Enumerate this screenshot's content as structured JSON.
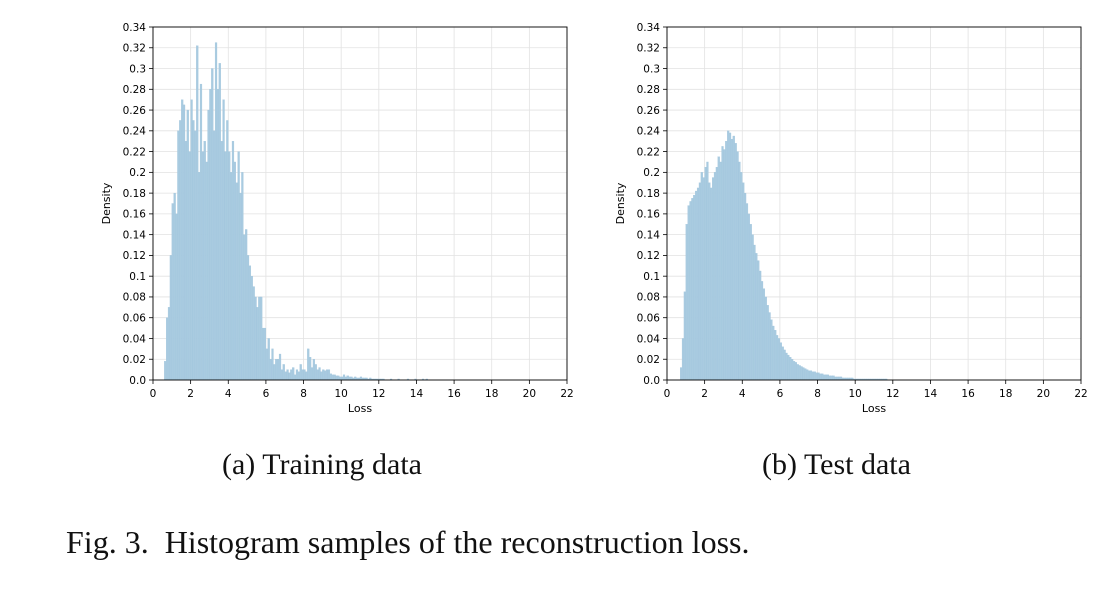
{
  "figure": {
    "number_label": "Fig. 3.",
    "caption": "Histogram samples of the reconstruction loss."
  },
  "colors": {
    "bar": "#a9cbe0",
    "grid": "#e2e2e2",
    "axis": "#000000"
  },
  "chart_data": [
    {
      "type": "bar",
      "subcaption": "(a) Training data",
      "xlabel": "Loss",
      "ylabel": "Density",
      "xlim": [
        0,
        22
      ],
      "ylim": [
        0,
        0.34
      ],
      "xticks": [
        0,
        2,
        4,
        6,
        8,
        10,
        12,
        14,
        16,
        18,
        20,
        22
      ],
      "yticks": [
        0.0,
        0.02,
        0.04,
        0.06,
        0.08,
        0.1,
        0.12,
        0.14,
        0.16,
        0.18,
        0.2,
        0.22,
        0.24,
        0.26,
        0.28,
        0.3,
        0.32,
        0.34
      ],
      "ytick_labels": [
        "0.0",
        "0.02",
        "0.04",
        "0.06",
        "0.08",
        "0.1",
        "0.12",
        "0.14",
        "0.16",
        "0.18",
        "0.2",
        "0.22",
        "0.24",
        "0.26",
        "0.28",
        "0.3",
        "0.32",
        "0.34"
      ],
      "grid": true,
      "bin_width": 0.1,
      "x_start": 0.6,
      "values": [
        0.018,
        0.06,
        0.07,
        0.12,
        0.17,
        0.18,
        0.16,
        0.24,
        0.25,
        0.27,
        0.265,
        0.23,
        0.26,
        0.22,
        0.27,
        0.25,
        0.24,
        0.322,
        0.2,
        0.285,
        0.22,
        0.23,
        0.21,
        0.26,
        0.28,
        0.3,
        0.24,
        0.325,
        0.28,
        0.305,
        0.23,
        0.27,
        0.22,
        0.25,
        0.22,
        0.2,
        0.23,
        0.21,
        0.19,
        0.22,
        0.18,
        0.2,
        0.14,
        0.145,
        0.12,
        0.11,
        0.1,
        0.09,
        0.08,
        0.07,
        0.08,
        0.08,
        0.05,
        0.05,
        0.03,
        0.04,
        0.02,
        0.03,
        0.015,
        0.02,
        0.02,
        0.025,
        0.01,
        0.015,
        0.008,
        0.01,
        0.007,
        0.01,
        0.012,
        0.005,
        0.01,
        0.008,
        0.015,
        0.01,
        0.01,
        0.008,
        0.03,
        0.022,
        0.012,
        0.02,
        0.015,
        0.01,
        0.012,
        0.008,
        0.01,
        0.009,
        0.01,
        0.01,
        0.006,
        0.005,
        0.005,
        0.004,
        0.004,
        0.003,
        0.003,
        0.005,
        0.003,
        0.004,
        0.003,
        0.003,
        0.002,
        0.003,
        0.002,
        0.002,
        0.003,
        0.002,
        0.002,
        0.002,
        0.001,
        0.002,
        0.001,
        0.001,
        0.001,
        0.001,
        0.001,
        0.001,
        0.001,
        0.0,
        0.0,
        0.0,
        0.001,
        0.0,
        0.0,
        0.0,
        0.001,
        0.0,
        0.0,
        0.0,
        0.0,
        0.001,
        0.0,
        0.0,
        0.0,
        0.001,
        0.0,
        0.0,
        0.0,
        0.001,
        0.0,
        0.001,
        0.0,
        0.0,
        0.0,
        0.0,
        0.0,
        0.0,
        0.0,
        0.0,
        0.0,
        0.0,
        0.0,
        0.0,
        0.0,
        0.0,
        0.0,
        0.0,
        0.0,
        0.0,
        0.0,
        0.0,
        0.0,
        0.0,
        0.0,
        0.0,
        0.0,
        0.0,
        0.0,
        0.0,
        0.0,
        0.0,
        0.0,
        0.0,
        0.0,
        0.0,
        0.0,
        0.0,
        0.0,
        0.0,
        0.0,
        0.0,
        0.0,
        0.0,
        0.0,
        0.0,
        0.0,
        0.0,
        0.0,
        0.0,
        0.0,
        0.0,
        0.0,
        0.0,
        0.0,
        0.0,
        0.0,
        0.0,
        0.0,
        0.0,
        0.0,
        0.0,
        0.0,
        0.0,
        0.0,
        0.0,
        0.0,
        0.0
      ]
    },
    {
      "type": "bar",
      "subcaption": "(b) Test data",
      "xlabel": "Loss",
      "ylabel": "Density",
      "xlim": [
        0,
        22
      ],
      "ylim": [
        0,
        0.34
      ],
      "xticks": [
        0,
        2,
        4,
        6,
        8,
        10,
        12,
        14,
        16,
        18,
        20,
        22
      ],
      "yticks": [
        0.0,
        0.02,
        0.04,
        0.06,
        0.08,
        0.1,
        0.12,
        0.14,
        0.16,
        0.18,
        0.2,
        0.22,
        0.24,
        0.26,
        0.28,
        0.3,
        0.32,
        0.34
      ],
      "ytick_labels": [
        "0.0",
        "0.02",
        "0.04",
        "0.06",
        "0.08",
        "0.1",
        "0.12",
        "0.14",
        "0.16",
        "0.18",
        "0.2",
        "0.22",
        "0.24",
        "0.26",
        "0.28",
        "0.3",
        "0.32",
        "0.34"
      ],
      "grid": true,
      "bin_width": 0.1,
      "x_start": 0.7,
      "values": [
        0.012,
        0.04,
        0.085,
        0.15,
        0.168,
        0.172,
        0.175,
        0.178,
        0.182,
        0.185,
        0.19,
        0.2,
        0.195,
        0.205,
        0.21,
        0.19,
        0.185,
        0.195,
        0.2,
        0.205,
        0.215,
        0.21,
        0.225,
        0.222,
        0.23,
        0.24,
        0.238,
        0.232,
        0.235,
        0.228,
        0.22,
        0.21,
        0.2,
        0.19,
        0.18,
        0.17,
        0.16,
        0.15,
        0.14,
        0.13,
        0.122,
        0.115,
        0.105,
        0.095,
        0.088,
        0.08,
        0.072,
        0.065,
        0.058,
        0.052,
        0.048,
        0.043,
        0.04,
        0.036,
        0.032,
        0.029,
        0.026,
        0.024,
        0.022,
        0.02,
        0.018,
        0.017,
        0.015,
        0.014,
        0.013,
        0.012,
        0.011,
        0.01,
        0.009,
        0.009,
        0.008,
        0.008,
        0.007,
        0.007,
        0.006,
        0.006,
        0.005,
        0.005,
        0.005,
        0.004,
        0.004,
        0.004,
        0.003,
        0.003,
        0.003,
        0.003,
        0.002,
        0.002,
        0.002,
        0.002,
        0.002,
        0.002,
        0.001,
        0.001,
        0.001,
        0.001,
        0.001,
        0.001,
        0.001,
        0.001,
        0.001,
        0.001,
        0.001,
        0.001,
        0.001,
        0.001,
        0.001,
        0.001,
        0.001,
        0.001,
        0.0,
        0.0,
        0.0,
        0.0,
        0.0,
        0.0,
        0.0,
        0.0,
        0.0,
        0.0,
        0.0,
        0.0,
        0.0,
        0.0,
        0.0,
        0.0,
        0.0,
        0.0,
        0.0,
        0.0,
        0.0,
        0.0,
        0.0,
        0.0,
        0.0,
        0.0,
        0.0,
        0.0,
        0.0,
        0.0,
        0.0,
        0.0,
        0.0,
        0.0,
        0.0,
        0.0,
        0.0,
        0.0,
        0.0,
        0.0,
        0.0,
        0.0,
        0.0,
        0.0,
        0.0,
        0.0,
        0.0,
        0.0,
        0.0,
        0.0,
        0.0,
        0.0,
        0.0,
        0.0,
        0.0,
        0.0,
        0.0,
        0.0,
        0.0,
        0.0,
        0.0,
        0.0,
        0.0,
        0.0,
        0.0,
        0.0,
        0.0,
        0.0,
        0.0,
        0.0,
        0.0,
        0.0,
        0.0,
        0.0,
        0.0,
        0.0,
        0.0,
        0.0,
        0.0,
        0.0,
        0.0,
        0.0,
        0.0,
        0.0,
        0.0,
        0.0,
        0.0,
        0.0,
        0.0,
        0.0,
        0.0,
        0.0,
        0.0,
        0.0,
        0.0,
        0.0,
        0.0,
        0.0,
        0.0,
        0.0,
        0.0,
        0.0,
        0.0,
        0.0,
        0.0,
        0.0,
        0.0,
        0.0,
        0.0,
        0.0,
        0.0,
        0.0
      ]
    }
  ]
}
